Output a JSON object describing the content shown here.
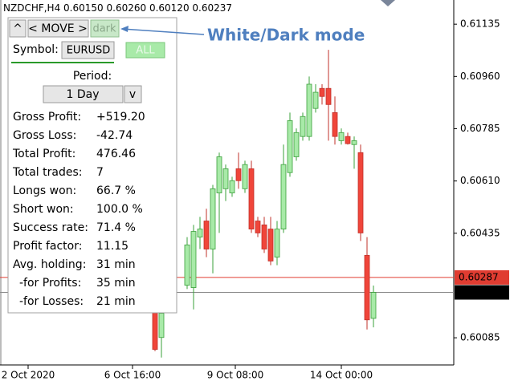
{
  "header": {
    "symbol": "NZDCHF,H4",
    "quote": [
      "0.60150",
      "0.60260",
      "0.60120",
      "0.60237"
    ]
  },
  "annotation": "White/Dark mode",
  "panel": {
    "buttons": [
      "^",
      "< MOVE >",
      "dark"
    ],
    "symbol_label": "Symbol:",
    "symbol": "EURUSD",
    "all": "ALL",
    "period_label": "Period:",
    "period": "1 Day",
    "dropdown": "v",
    "stats": [
      [
        "Gross Profit:",
        "+519.20"
      ],
      [
        "Gross Loss:",
        "-42.74"
      ],
      [
        "Total Profit:",
        "476.46"
      ],
      [
        "Total trades:",
        "7"
      ],
      [
        "Longs won:",
        "66.7 %"
      ],
      [
        "Short won:",
        "100.0 %"
      ],
      [
        "Success rate:",
        "71.4 %"
      ],
      [
        "Profit factor:",
        "11.15"
      ],
      [
        "Avg. holding:",
        "31 min"
      ],
      [
        "-for Profits:",
        "35 min"
      ],
      [
        "-for Losses:",
        "21 min"
      ]
    ]
  },
  "chart": {
    "type": "candlestick",
    "ylim": [
      0.59994,
      0.61216
    ],
    "yticks": [
      0.61135,
      {
        "value": 0.6096,
        "label": "0.60960"
      },
      0.60785,
      {
        "value": 0.6061,
        "label": "0.60610"
      },
      0.60435,
      0.60085
    ],
    "xticks": [
      "2 Oct 2020",
      "6 Oct 16:00",
      "9 Oct 08:00",
      "14 Oct 00:00"
    ],
    "up_color": "#a8eaa8",
    "down_color": "#f0453a",
    "price_lines": [
      {
        "value": 0.60287,
        "color": "#e03c31"
      },
      {
        "value": 0.60237,
        "color": "#000000"
      }
    ],
    "candles": [
      {
        "open": 0.6018,
        "high": 0.6018,
        "low": 0.6004,
        "close": 0.60046
      },
      {
        "open": 0.60086,
        "high": 0.60194,
        "low": 0.60019,
        "close": 0.60167
      },
      {
        "open": 0.60261,
        "high": 0.60422,
        "low": 0.60248,
        "close": 0.60396
      },
      {
        "open": 0.60253,
        "high": 0.60463,
        "low": 0.6018,
        "close": 0.60441
      },
      {
        "open": 0.60422,
        "high": 0.6049,
        "low": 0.60382,
        "close": 0.60449
      },
      {
        "open": 0.60476,
        "high": 0.60517,
        "low": 0.60355,
        "close": 0.60382
      },
      {
        "open": 0.60382,
        "high": 0.60597,
        "low": 0.60301,
        "close": 0.60584
      },
      {
        "open": 0.6057,
        "high": 0.60705,
        "low": 0.60436,
        "close": 0.60691
      },
      {
        "open": 0.60584,
        "high": 0.60665,
        "low": 0.60543,
        "close": 0.60651
      },
      {
        "open": 0.6057,
        "high": 0.60624,
        "low": 0.60557,
        "close": 0.60611
      },
      {
        "open": 0.60651,
        "high": 0.60705,
        "low": 0.60584,
        "close": 0.60611
      },
      {
        "open": 0.60584,
        "high": 0.60678,
        "low": 0.6057,
        "close": 0.60665
      },
      {
        "open": 0.60651,
        "high": 0.60678,
        "low": 0.60436,
        "close": 0.60449
      },
      {
        "open": 0.60476,
        "high": 0.6049,
        "low": 0.60422,
        "close": 0.60436
      },
      {
        "open": 0.60463,
        "high": 0.6049,
        "low": 0.60369,
        "close": 0.60382
      },
      {
        "open": 0.60449,
        "high": 0.6049,
        "low": 0.60328,
        "close": 0.60342
      },
      {
        "open": 0.60355,
        "high": 0.60476,
        "low": 0.60328,
        "close": 0.60449
      },
      {
        "open": 0.60449,
        "high": 0.60732,
        "low": 0.60436,
        "close": 0.60665
      },
      {
        "open": 0.60638,
        "high": 0.60839,
        "low": 0.60624,
        "close": 0.60812
      },
      {
        "open": 0.60691,
        "high": 0.60786,
        "low": 0.60678,
        "close": 0.60772
      },
      {
        "open": 0.60759,
        "high": 0.60839,
        "low": 0.60745,
        "close": 0.60826
      },
      {
        "open": 0.60759,
        "high": 0.6096,
        "low": 0.60745,
        "close": 0.60934
      },
      {
        "open": 0.60853,
        "high": 0.60934,
        "low": 0.60839,
        "close": 0.60907
      },
      {
        "open": 0.6092,
        "high": 0.60934,
        "low": 0.60866,
        "close": 0.60893
      },
      {
        "open": 0.6092,
        "high": 0.61049,
        "low": 0.60745,
        "close": 0.60866
      },
      {
        "open": 0.60839,
        "high": 0.60893,
        "low": 0.60732,
        "close": 0.60759
      },
      {
        "open": 0.60745,
        "high": 0.60786,
        "low": 0.60732,
        "close": 0.60772
      },
      {
        "open": 0.60759,
        "high": 0.60772,
        "low": 0.60732,
        "close": 0.60735
      },
      {
        "open": 0.60732,
        "high": 0.60759,
        "low": 0.60651,
        "close": 0.60745
      },
      {
        "open": 0.60705,
        "high": 0.60732,
        "low": 0.60409,
        "close": 0.60436
      },
      {
        "open": 0.60361,
        "high": 0.60422,
        "low": 0.60113,
        "close": 0.60145
      },
      {
        "open": 0.6015,
        "high": 0.6026,
        "low": 0.6012,
        "close": 0.60237
      }
    ]
  }
}
